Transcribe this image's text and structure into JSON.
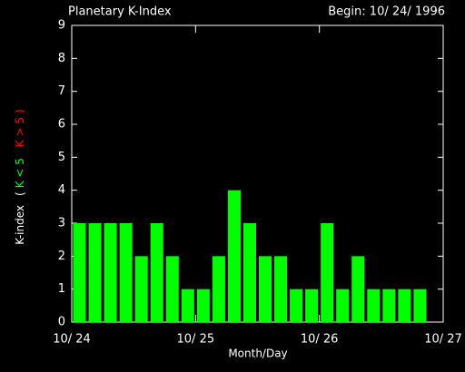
{
  "chart_data": {
    "type": "bar",
    "title": "Planetary K-Index",
    "subtitle": "Begin: 10/ 24/ 1996",
    "xlabel": "Month/Day",
    "ylabel": "K-index",
    "legend_brackets": [
      "(",
      ")"
    ],
    "legend": [
      {
        "name": "K < 5",
        "color": "#00ff00"
      },
      {
        "name": "K > 5",
        "color": "#ff0000"
      }
    ],
    "x": [
      0,
      3,
      6,
      9,
      12,
      15,
      18,
      21,
      24,
      27,
      30,
      33,
      36,
      39,
      42,
      45,
      48,
      51,
      54,
      57,
      60,
      63,
      66,
      69
    ],
    "values": [
      3,
      3,
      3,
      3,
      2,
      3,
      2,
      1,
      1,
      2,
      4,
      3,
      2,
      2,
      1,
      1,
      3,
      1,
      2,
      1,
      1,
      1,
      1,
      null
    ],
    "bar_width": 3,
    "color": "#00ff00",
    "xlim": [
      0,
      72
    ],
    "xticks": [
      {
        "value": 0,
        "label": "10/ 24"
      },
      {
        "value": 24,
        "label": "10/ 25"
      },
      {
        "value": 48,
        "label": "10/ 26"
      },
      {
        "value": 72,
        "label": "10/ 27"
      }
    ],
    "ylim": [
      0,
      9
    ],
    "yticks": [
      0,
      1,
      2,
      3,
      4,
      5,
      6,
      7,
      8,
      9
    ]
  }
}
